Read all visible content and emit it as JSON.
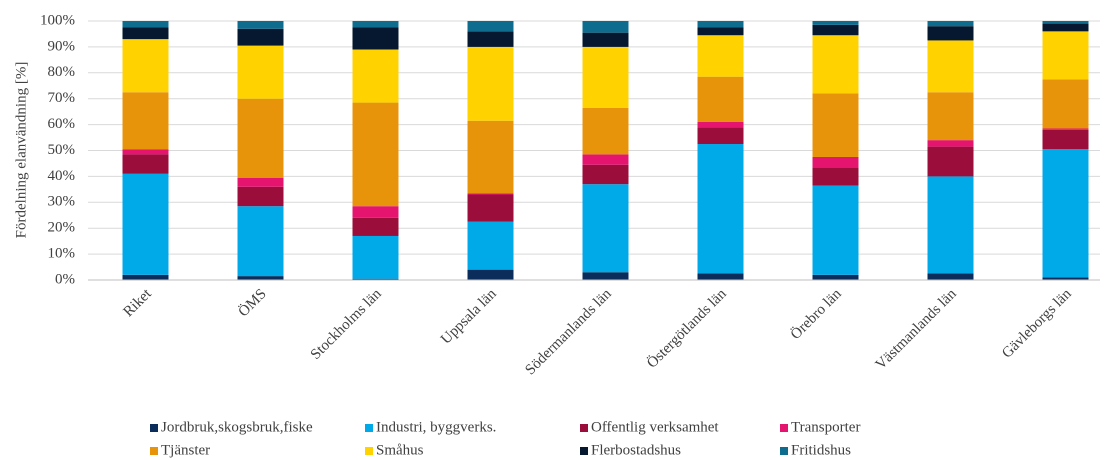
{
  "chart_data": {
    "type": "stacked-bar",
    "y_label": "Fördelning elanvändning [%]",
    "categories": [
      "Riket",
      "ÖMS",
      "Stockholms län",
      "Uppsala län",
      "Södermanlands län",
      "Östergötlands län",
      "Örebro län",
      "Västmanlands län",
      "Gävleborgs län"
    ],
    "series": [
      {
        "name": "Jordbruk,skogsbruk,fiske",
        "color": "#0b2d5b",
        "values": [
          2,
          1.5,
          0.5,
          4,
          3,
          2.5,
          2,
          2.5,
          1
        ]
      },
      {
        "name": "Industri, byggverks.",
        "color": "#00a9e8",
        "values": [
          39,
          27,
          16.5,
          18.5,
          34,
          50,
          34.5,
          37.5,
          49.5
        ]
      },
      {
        "name": "Offentlig verksamhet",
        "color": "#9b0d3a",
        "values": [
          7.5,
          7.5,
          7,
          10.5,
          7.5,
          6.5,
          7,
          11.5,
          7.5
        ]
      },
      {
        "name": "Transporter",
        "color": "#e5146f",
        "values": [
          2,
          3.5,
          4.5,
          0.5,
          4,
          2,
          4,
          2.5,
          0.5
        ]
      },
      {
        "name": "Tjänster",
        "color": "#e8940a",
        "values": [
          22,
          30.5,
          40,
          28,
          18,
          17.5,
          24.5,
          18.5,
          19
        ]
      },
      {
        "name": "Småhus",
        "color": "#ffd200",
        "values": [
          20.5,
          20.5,
          20.5,
          28.5,
          23.5,
          16,
          22.5,
          20,
          18.5
        ]
      },
      {
        "name": "Flerbostadshus",
        "color": "#06182f",
        "values": [
          4.5,
          6.5,
          8.5,
          6,
          5.5,
          3,
          4,
          5.5,
          3
        ]
      },
      {
        "name": "Fritidshus",
        "color": "#0e6d8f",
        "values": [
          2.5,
          3,
          2.5,
          4,
          4.5,
          2.5,
          1.5,
          2,
          1
        ]
      }
    ],
    "ylim": [
      0,
      100
    ],
    "yticks": [
      {
        "value": 0,
        "label": "0%"
      },
      {
        "value": 10,
        "label": "10%"
      },
      {
        "value": 20,
        "label": "20%"
      },
      {
        "value": 30,
        "label": "30%"
      },
      {
        "value": 40,
        "label": "40%"
      },
      {
        "value": 50,
        "label": "50%"
      },
      {
        "value": 60,
        "label": "60%"
      },
      {
        "value": 70,
        "label": "70%"
      },
      {
        "value": 80,
        "label": "80%"
      },
      {
        "value": 90,
        "label": "90%"
      },
      {
        "value": 100,
        "label": "100%"
      }
    ],
    "grid": true
  }
}
